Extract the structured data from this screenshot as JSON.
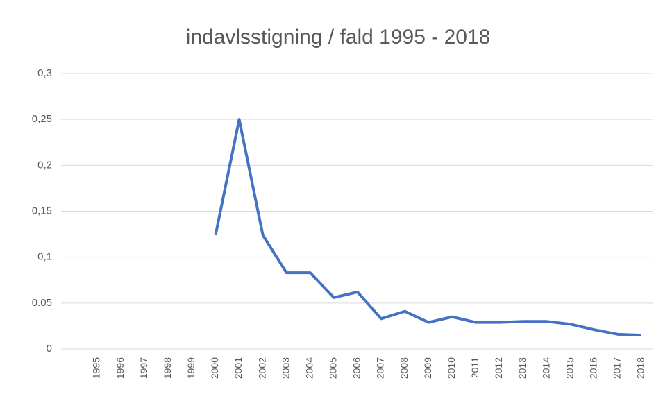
{
  "chart_data": {
    "type": "line",
    "title": "indavlsstigning / fald 1995 - 2018",
    "categories": [
      "1995",
      "1996",
      "1997",
      "1998",
      "1999",
      "2000",
      "2001",
      "2002",
      "2003",
      "2004",
      "2005",
      "2006",
      "2007",
      "2008",
      "2009",
      "2010",
      "2011",
      "2012",
      "2013",
      "2014",
      "2015",
      "2016",
      "2017",
      "2018"
    ],
    "series": [
      {
        "name": "indavlsstigning",
        "color": "#4472c4",
        "values": [
          null,
          null,
          null,
          null,
          null,
          0.124,
          0.25,
          0.124,
          0.083,
          0.083,
          0.056,
          0.062,
          0.033,
          0.041,
          0.029,
          0.035,
          0.029,
          0.029,
          0.03,
          0.03,
          0.027,
          0.021,
          0.016,
          0.015
        ]
      }
    ],
    "ylim": [
      0,
      0.3
    ],
    "yticks": [
      0,
      0.05,
      {
        "value": 0.1,
        "label": "0,1"
      },
      {
        "value": 0.15,
        "label": "0,15"
      },
      {
        "value": 0.2,
        "label": "0,2"
      },
      {
        "value": 0.25,
        "label": "0,25"
      },
      {
        "value": 0.3,
        "label": "0,3"
      }
    ],
    "grid": true
  }
}
